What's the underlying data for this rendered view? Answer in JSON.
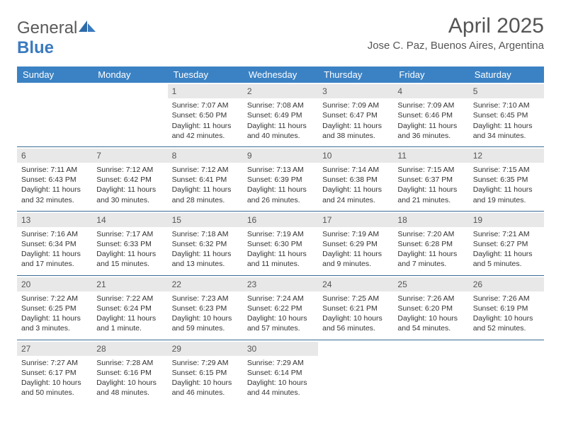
{
  "logo": {
    "text1": "General",
    "text2": "Blue"
  },
  "title": "April 2025",
  "location": "Jose C. Paz, Buenos Aires, Argentina",
  "colors": {
    "header_bg": "#3b82c4",
    "header_text": "#ffffff",
    "row_border": "#3b6b94",
    "daynum_bg": "#e8e8e8",
    "body_text": "#333333",
    "logo_gray": "#5a5a5a",
    "logo_blue": "#3b7bbf"
  },
  "font": {
    "family": "Arial",
    "title_size": 30,
    "location_size": 15,
    "header_size": 13,
    "cell_size": 10.5
  },
  "weekdays": [
    "Sunday",
    "Monday",
    "Tuesday",
    "Wednesday",
    "Thursday",
    "Friday",
    "Saturday"
  ],
  "weeks": [
    [
      null,
      null,
      {
        "d": "1",
        "sr": "7:07 AM",
        "ss": "6:50 PM",
        "dl": "11 hours and 42 minutes."
      },
      {
        "d": "2",
        "sr": "7:08 AM",
        "ss": "6:49 PM",
        "dl": "11 hours and 40 minutes."
      },
      {
        "d": "3",
        "sr": "7:09 AM",
        "ss": "6:47 PM",
        "dl": "11 hours and 38 minutes."
      },
      {
        "d": "4",
        "sr": "7:09 AM",
        "ss": "6:46 PM",
        "dl": "11 hours and 36 minutes."
      },
      {
        "d": "5",
        "sr": "7:10 AM",
        "ss": "6:45 PM",
        "dl": "11 hours and 34 minutes."
      }
    ],
    [
      {
        "d": "6",
        "sr": "7:11 AM",
        "ss": "6:43 PM",
        "dl": "11 hours and 32 minutes."
      },
      {
        "d": "7",
        "sr": "7:12 AM",
        "ss": "6:42 PM",
        "dl": "11 hours and 30 minutes."
      },
      {
        "d": "8",
        "sr": "7:12 AM",
        "ss": "6:41 PM",
        "dl": "11 hours and 28 minutes."
      },
      {
        "d": "9",
        "sr": "7:13 AM",
        "ss": "6:39 PM",
        "dl": "11 hours and 26 minutes."
      },
      {
        "d": "10",
        "sr": "7:14 AM",
        "ss": "6:38 PM",
        "dl": "11 hours and 24 minutes."
      },
      {
        "d": "11",
        "sr": "7:15 AM",
        "ss": "6:37 PM",
        "dl": "11 hours and 21 minutes."
      },
      {
        "d": "12",
        "sr": "7:15 AM",
        "ss": "6:35 PM",
        "dl": "11 hours and 19 minutes."
      }
    ],
    [
      {
        "d": "13",
        "sr": "7:16 AM",
        "ss": "6:34 PM",
        "dl": "11 hours and 17 minutes."
      },
      {
        "d": "14",
        "sr": "7:17 AM",
        "ss": "6:33 PM",
        "dl": "11 hours and 15 minutes."
      },
      {
        "d": "15",
        "sr": "7:18 AM",
        "ss": "6:32 PM",
        "dl": "11 hours and 13 minutes."
      },
      {
        "d": "16",
        "sr": "7:19 AM",
        "ss": "6:30 PM",
        "dl": "11 hours and 11 minutes."
      },
      {
        "d": "17",
        "sr": "7:19 AM",
        "ss": "6:29 PM",
        "dl": "11 hours and 9 minutes."
      },
      {
        "d": "18",
        "sr": "7:20 AM",
        "ss": "6:28 PM",
        "dl": "11 hours and 7 minutes."
      },
      {
        "d": "19",
        "sr": "7:21 AM",
        "ss": "6:27 PM",
        "dl": "11 hours and 5 minutes."
      }
    ],
    [
      {
        "d": "20",
        "sr": "7:22 AM",
        "ss": "6:25 PM",
        "dl": "11 hours and 3 minutes."
      },
      {
        "d": "21",
        "sr": "7:22 AM",
        "ss": "6:24 PM",
        "dl": "11 hours and 1 minute."
      },
      {
        "d": "22",
        "sr": "7:23 AM",
        "ss": "6:23 PM",
        "dl": "10 hours and 59 minutes."
      },
      {
        "d": "23",
        "sr": "7:24 AM",
        "ss": "6:22 PM",
        "dl": "10 hours and 57 minutes."
      },
      {
        "d": "24",
        "sr": "7:25 AM",
        "ss": "6:21 PM",
        "dl": "10 hours and 56 minutes."
      },
      {
        "d": "25",
        "sr": "7:26 AM",
        "ss": "6:20 PM",
        "dl": "10 hours and 54 minutes."
      },
      {
        "d": "26",
        "sr": "7:26 AM",
        "ss": "6:19 PM",
        "dl": "10 hours and 52 minutes."
      }
    ],
    [
      {
        "d": "27",
        "sr": "7:27 AM",
        "ss": "6:17 PM",
        "dl": "10 hours and 50 minutes."
      },
      {
        "d": "28",
        "sr": "7:28 AM",
        "ss": "6:16 PM",
        "dl": "10 hours and 48 minutes."
      },
      {
        "d": "29",
        "sr": "7:29 AM",
        "ss": "6:15 PM",
        "dl": "10 hours and 46 minutes."
      },
      {
        "d": "30",
        "sr": "7:29 AM",
        "ss": "6:14 PM",
        "dl": "10 hours and 44 minutes."
      },
      null,
      null,
      null
    ]
  ],
  "labels": {
    "sunrise": "Sunrise: ",
    "sunset": "Sunset: ",
    "daylight": "Daylight: "
  }
}
